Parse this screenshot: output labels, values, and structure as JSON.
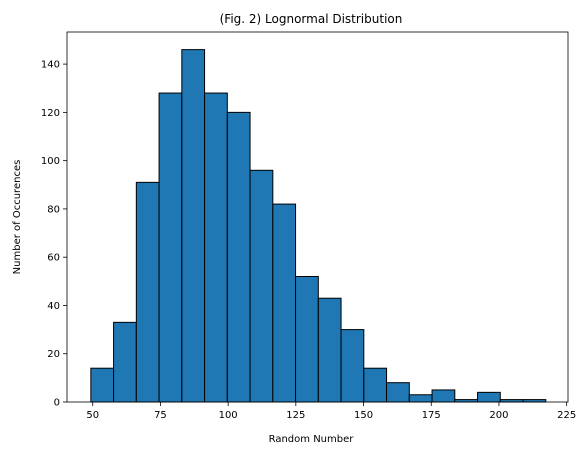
{
  "chart_data": {
    "type": "bar",
    "title": "(Fig. 2) Lognormal Distribution",
    "xlabel": "Random Number",
    "ylabel": "Number of Occurences",
    "bar_color": "#1f77b4",
    "edge_color": "#000000",
    "xlim": [
      40.5,
      225.5
    ],
    "ylim": [
      0,
      153.3
    ],
    "xticks": [
      50,
      75,
      100,
      125,
      150,
      175,
      200,
      225
    ],
    "yticks": [
      0,
      20,
      40,
      60,
      80,
      100,
      120,
      140
    ],
    "bin_edges": [
      49.3,
      57.7,
      66.1,
      74.5,
      82.9,
      91.3,
      99.7,
      108.1,
      116.5,
      124.9,
      133.3,
      141.7,
      150.1,
      158.5,
      166.9,
      175.3,
      183.7,
      192.1,
      200.5,
      208.9,
      217.3
    ],
    "values": [
      14,
      33,
      91,
      128,
      146,
      128,
      120,
      96,
      82,
      52,
      43,
      30,
      14,
      8,
      3,
      5,
      1,
      4,
      1,
      1
    ],
    "grid": false,
    "legend": "none"
  }
}
